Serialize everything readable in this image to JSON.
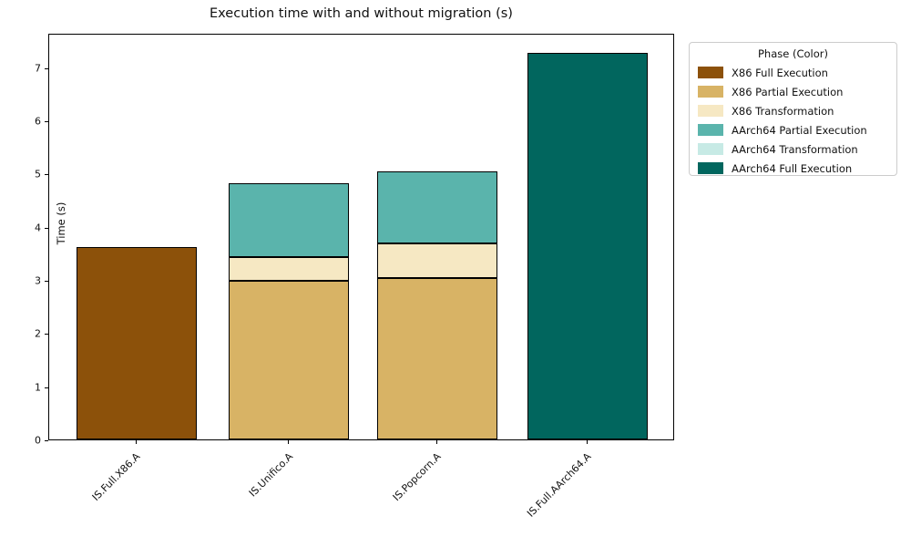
{
  "title": "Execution time with and without migration (s)",
  "chart_data": {
    "type": "bar",
    "stacked": true,
    "title": "Execution time with and without migration (s)",
    "xlabel": "",
    "ylabel": "Time (s)",
    "categories": [
      "IS.Full.X86.A",
      "IS.Unifico.A",
      "IS.Popcorn.A",
      "IS.Full.AArch64.A"
    ],
    "series": [
      {
        "name": "X86 Full Execution",
        "color": "#8c510a",
        "values": [
          3.62,
          0,
          0,
          0
        ]
      },
      {
        "name": "X86 Partial Execution",
        "color": "#d8b365",
        "values": [
          0,
          2.98,
          3.04,
          0
        ]
      },
      {
        "name": "X86 Transformation",
        "color": "#f6e8c3",
        "values": [
          0,
          0.45,
          0.64,
          0
        ]
      },
      {
        "name": "AArch64 Partial Execution",
        "color": "#5ab4ac",
        "values": [
          0,
          1.39,
          1.37,
          0
        ]
      },
      {
        "name": "AArch64 Transformation",
        "color": "#c7eae5",
        "values": [
          0,
          0,
          0,
          0
        ]
      },
      {
        "name": "AArch64 Full Execution",
        "color": "#01665e",
        "values": [
          0,
          0,
          0,
          7.28
        ]
      }
    ],
    "bar_totals": [
      3.62,
      4.82,
      5.05,
      7.28
    ],
    "yticks": [
      0,
      1,
      2,
      3,
      4,
      5,
      6,
      7
    ],
    "ylim": [
      0,
      7.65
    ],
    "grid": false,
    "legend_position": "outside-upper-right",
    "bar_edge_color": "#000000"
  },
  "legend": {
    "title": "Phase (Color)",
    "entries": [
      {
        "label": "X86 Full Execution",
        "color": "#8c510a"
      },
      {
        "label": "X86 Partial Execution",
        "color": "#d8b365"
      },
      {
        "label": "X86 Transformation",
        "color": "#f6e8c3"
      },
      {
        "label": "AArch64 Partial Execution",
        "color": "#5ab4ac"
      },
      {
        "label": "AArch64 Transformation",
        "color": "#c7eae5"
      },
      {
        "label": "AArch64 Full Execution",
        "color": "#01665e"
      }
    ]
  }
}
